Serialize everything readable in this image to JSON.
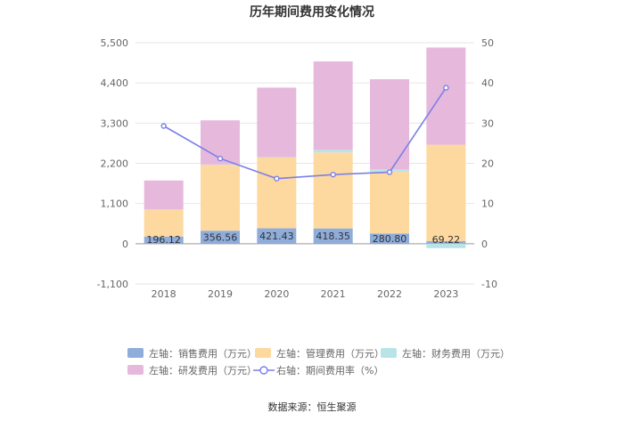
{
  "chart_data": {
    "type": "bar",
    "title": "历年期间费用变化情况",
    "categories": [
      "2018",
      "2019",
      "2020",
      "2021",
      "2022",
      "2023"
    ],
    "left_axis": {
      "min": -1100,
      "max": 5500,
      "ticks": [
        -1100,
        0,
        1100,
        2200,
        3300,
        4400,
        5500
      ],
      "tick_labels": [
        "-1,100",
        "0",
        "1,100",
        "2,200",
        "3,300",
        "4,400",
        "5,500"
      ]
    },
    "right_axis": {
      "min": -10,
      "max": 50,
      "ticks": [
        -10,
        0,
        10,
        20,
        30,
        40,
        50
      ],
      "tick_labels": [
        "-10",
        "0",
        "10",
        "20",
        "30",
        "40",
        "50"
      ]
    },
    "series": [
      {
        "name": "左轴：销售费用（万元）",
        "kind": "bar",
        "color": "#8eaddb",
        "values": [
          196.12,
          356.56,
          421.43,
          418.35,
          280.8,
          69.22
        ],
        "labels": [
          "196.12",
          "356.56",
          "421.43",
          "418.35",
          "280.80",
          "69.22"
        ]
      },
      {
        "name": "左轴：管理费用（万元）",
        "kind": "bar",
        "color": "#fdd9a0",
        "values": [
          740,
          1800,
          1940,
          2080,
          1690,
          2640
        ]
      },
      {
        "name": "左轴：财务费用（万元）",
        "kind": "bar",
        "color": "#b8e4e8",
        "values": [
          5,
          10,
          10,
          70,
          70,
          -120
        ]
      },
      {
        "name": "左轴：研发费用（万元）",
        "kind": "bar",
        "color": "#e6b9dc",
        "values": [
          790,
          1210,
          1900,
          2420,
          2460,
          2660
        ]
      },
      {
        "name": "右轴：期间费用率（%）",
        "kind": "line",
        "color": "#7a7fe8",
        "values": [
          29.3,
          21.2,
          16.2,
          17.2,
          17.8,
          38.8
        ]
      }
    ],
    "grid": true
  },
  "source_text": "数据来源：恒生聚源"
}
